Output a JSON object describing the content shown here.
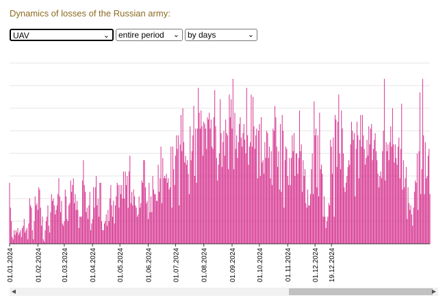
{
  "header": {
    "title": "Dynamics of losses of the Russian army:"
  },
  "controls": {
    "category": {
      "value": "UAV"
    },
    "period": {
      "value": "entire period"
    },
    "granularity": {
      "value": "by days"
    }
  },
  "colors": {
    "bar": "#d6338f",
    "grid": "#e6e6e6",
    "axis": "#333333",
    "title": "#8B6A1F"
  },
  "chart_data": {
    "type": "bar",
    "title": "",
    "xlabel": "",
    "ylabel": "",
    "x_start": "2024-01-01",
    "x_end": "2024-12-19",
    "x_ticks": [
      "01.01.2024",
      "01.02.2024",
      "01.03.2024",
      "01.04.2024",
      "01.05.2024",
      "01.06.2024",
      "01.07.2024",
      "01.08.2024",
      "01.09.2024",
      "01.10.2024",
      "01.11.2024",
      "01.12.2024",
      "19.12.2024"
    ],
    "ylim": [
      0,
      80
    ],
    "grid": true,
    "values": [
      27,
      16,
      10,
      3,
      2,
      6,
      4,
      6,
      5,
      7,
      4,
      5,
      6,
      3,
      7,
      8,
      11,
      5,
      6,
      7,
      2,
      9,
      20,
      17,
      16,
      6,
      2,
      10,
      21,
      17,
      18,
      15,
      25,
      24,
      16,
      8,
      12,
      2,
      1,
      6,
      10,
      12,
      17,
      8,
      5,
      14,
      22,
      19,
      20,
      17,
      13,
      15,
      17,
      22,
      29,
      21,
      14,
      19,
      9,
      8,
      10,
      24,
      21,
      11,
      10,
      17,
      18,
      28,
      23,
      26,
      29,
      18,
      22,
      15,
      19,
      15,
      7,
      12,
      12,
      12,
      28,
      37,
      26,
      23,
      14,
      16,
      11,
      17,
      23,
      6,
      9,
      11,
      25,
      16,
      25,
      30,
      17,
      20,
      12,
      27,
      27,
      10,
      6,
      6,
      9,
      10,
      13,
      8,
      15,
      10,
      20,
      26,
      17,
      12,
      19,
      9,
      17,
      21,
      27,
      26,
      16,
      26,
      22,
      26,
      20,
      32,
      20,
      32,
      26,
      30,
      16,
      32,
      39,
      18,
      23,
      17,
      24,
      21,
      17,
      16,
      12,
      13,
      21,
      16,
      18,
      28,
      27,
      37,
      37,
      25,
      18,
      19,
      11,
      27,
      14,
      21,
      14,
      30,
      24,
      22,
      22,
      19,
      19,
      35,
      23,
      29,
      43,
      18,
      38,
      29,
      30,
      29,
      31,
      27,
      29,
      24,
      25,
      43,
      16,
      43,
      33,
      26,
      39,
      48,
      42,
      48,
      17,
      44,
      57,
      41,
      60,
      45,
      36,
      39,
      35,
      37,
      31,
      22,
      52,
      37,
      41,
      48,
      61,
      30,
      51,
      27,
      51,
      69,
      58,
      51,
      59,
      52,
      39,
      54,
      53,
      51,
      42,
      56,
      55,
      58,
      51,
      55,
      43,
      42,
      56,
      68,
      52,
      38,
      28,
      35,
      40,
      64,
      49,
      34,
      45,
      50,
      39,
      55,
      49,
      48,
      33,
      66,
      56,
      64,
      51,
      73,
      33,
      58,
      42,
      48,
      38,
      45,
      53,
      56,
      47,
      43,
      49,
      53,
      46,
      40,
      69,
      48,
      35,
      43,
      45,
      66,
      43,
      65,
      52,
      42,
      48,
      51,
      29,
      50,
      53,
      30,
      56,
      36,
      37,
      31,
      45,
      38,
      50,
      49,
      38,
      43,
      29,
      41,
      26,
      51,
      50,
      61,
      56,
      43,
      34,
      41,
      24,
      53,
      23,
      57,
      50,
      16,
      37,
      43,
      42,
      30,
      26,
      38,
      26,
      38,
      48,
      41,
      49,
      30,
      40,
      40,
      31,
      38,
      59,
      41,
      44,
      23,
      37,
      30,
      33,
      18,
      16,
      24,
      17,
      17,
      22,
      33,
      40,
      22,
      63,
      48,
      51,
      25,
      48,
      21,
      58,
      33,
      35,
      31,
      12,
      21,
      12,
      7,
      10,
      12,
      18,
      17,
      46,
      43,
      31,
      47,
      12,
      57,
      55,
      34,
      54,
      66,
      40,
      33,
      59,
      51,
      40,
      25,
      23,
      27,
      30,
      34,
      37,
      35,
      44,
      54,
      50,
      46,
      49,
      21,
      42,
      54,
      48,
      29,
      46,
      57,
      43,
      57,
      48,
      42,
      35,
      38,
      46,
      39,
      52,
      44,
      51,
      53,
      37,
      42,
      46,
      49,
      41,
      37,
      31,
      25,
      30,
      32,
      29,
      41,
      50,
      73,
      28,
      45,
      41,
      44,
      37,
      45,
      52,
      43,
      60,
      44,
      36,
      44,
      38,
      35,
      43,
      47,
      29,
      42,
      62,
      24,
      37,
      25,
      29,
      34,
      11,
      25,
      18,
      15,
      17,
      13,
      8,
      16,
      23,
      28,
      27,
      40,
      15,
      41,
      67,
      22,
      33,
      73,
      48,
      22,
      45,
      29,
      30,
      39,
      42,
      22
    ]
  },
  "scrollbar": {
    "left_arrow": "◀",
    "right_arrow": "▶"
  }
}
